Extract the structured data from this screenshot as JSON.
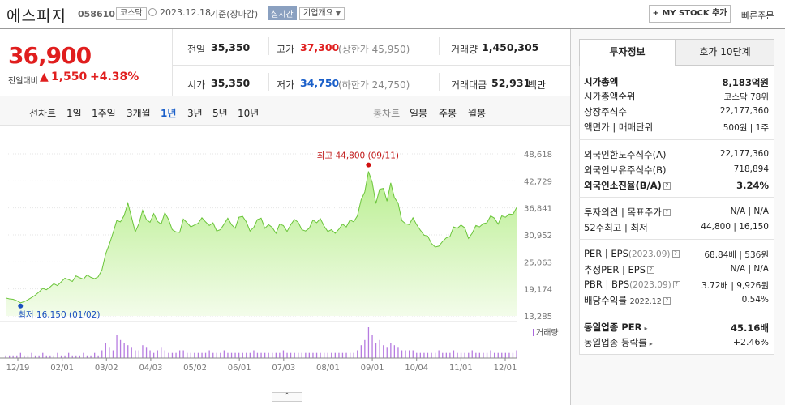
{
  "header": {
    "name": "에스피지",
    "code": "058610",
    "market": "코스닥",
    "date": "2023.12.18",
    "basis": "기준(장마감)",
    "realtime": "실시간",
    "company_info": "기업개요",
    "mystock": "+ MY STOCK 추가",
    "quick_order": "빠른주문"
  },
  "price": {
    "current": "36,900",
    "change_label": "전일대비",
    "change": "1,550",
    "rate": "+4.38%"
  },
  "summary": {
    "prev_label": "전일",
    "prev": "35,350",
    "high_label": "고가",
    "high": "37,300",
    "upper_limit": "(상한가 45,950)",
    "volume_label": "거래량",
    "volume": "1,450,305",
    "open_label": "시가",
    "open": "35,350",
    "low_label": "저가",
    "low": "34,750",
    "lower_limit": "(하한가 24,750)",
    "amount_label": "거래대금",
    "amount": "52,931",
    "amount_unit": "백만"
  },
  "period_tabs": {
    "line_chart": "선차트",
    "items": [
      "1일",
      "1주일",
      "3개월",
      "1년",
      "3년",
      "5년",
      "10년"
    ],
    "selected": "1년",
    "candle_chart": "봉차트",
    "candle_items": [
      "일봉",
      "주봉",
      "월봉"
    ]
  },
  "chart_labels": {
    "high": "최고 44,800 (09/11)",
    "low": "최저 16,150 (01/02)",
    "volume": "거래량"
  },
  "chart_data": {
    "type": "area",
    "x_ticks": [
      "12/19",
      "02/01",
      "03/02",
      "04/03",
      "05/02",
      "06/01",
      "07/03",
      "08/01",
      "09/01",
      "10/04",
      "11/01",
      "12/01"
    ],
    "y_ticks": [
      "48,618",
      "42,729",
      "36,841",
      "30,952",
      "25,063",
      "19,174",
      "13,285"
    ],
    "ylim": [
      13285,
      48618
    ],
    "series": [
      {
        "values": [
          17200,
          17000,
          16900,
          16600,
          16150,
          16400,
          16800,
          17300,
          17800,
          18500,
          19300,
          19000,
          19600,
          20300,
          19900,
          20700,
          21500,
          21200,
          20800,
          22000,
          21600,
          21300,
          22200,
          21700,
          21400,
          21800,
          23300,
          26800,
          28900,
          31400,
          34100,
          33800,
          35200,
          37900,
          34800,
          31600,
          33400,
          36300,
          34300,
          33700,
          35600,
          33900,
          33300,
          35800,
          34300,
          32100,
          31600,
          31500,
          34400,
          33600,
          32700,
          33100,
          33500,
          34700,
          33800,
          33000,
          33600,
          31800,
          32100,
          33300,
          34600,
          33200,
          32400,
          34800,
          35000,
          33800,
          31800,
          32600,
          34300,
          34600,
          32400,
          33200,
          32600,
          31300,
          33300,
          33000,
          31700,
          33200,
          34300,
          33700,
          32100,
          31800,
          32400,
          34200,
          33600,
          34500,
          32900,
          31700,
          32100,
          31300,
          32200,
          33300,
          32700,
          34200,
          33800,
          35100,
          38600,
          40300,
          44800,
          42400,
          37800,
          40900,
          41100,
          38300,
          42300,
          39100,
          37900,
          34100,
          33400,
          33200,
          34700,
          33200,
          32000,
          30900,
          30700,
          29100,
          28300,
          28500,
          29500,
          30300,
          30600,
          32700,
          32400,
          33100,
          32500,
          30200,
          31300,
          33000,
          32700,
          33400,
          33600,
          35100,
          34600,
          33300,
          35100,
          34800,
          35500,
          35400,
          36900
        ]
      },
      {
        "name": "거래량",
        "values": [
          1,
          1,
          1,
          1,
          2,
          1,
          1,
          2,
          1,
          1,
          2,
          1,
          1,
          1,
          2,
          1,
          1,
          2,
          1,
          1,
          1,
          2,
          1,
          1,
          2,
          1,
          3,
          6,
          4,
          3,
          9,
          7,
          6,
          5,
          4,
          3,
          3,
          5,
          4,
          3,
          2,
          3,
          4,
          3,
          2,
          2,
          2,
          3,
          3,
          2,
          2,
          2,
          2,
          2,
          2,
          3,
          2,
          2,
          2,
          3,
          2,
          2,
          2,
          2,
          2,
          2,
          2,
          3,
          2,
          2,
          2,
          2,
          2,
          2,
          2,
          3,
          2,
          2,
          2,
          2,
          2,
          2,
          2,
          2,
          2,
          2,
          2,
          2,
          2,
          2,
          2,
          2,
          2,
          2,
          2,
          3,
          5,
          7,
          12,
          9,
          6,
          7,
          5,
          4,
          6,
          5,
          4,
          3,
          3,
          3,
          3,
          2,
          2,
          2,
          2,
          2,
          2,
          3,
          2,
          2,
          2,
          3,
          2,
          2,
          2,
          2,
          3,
          2,
          2,
          2,
          2,
          3,
          2,
          2,
          2,
          2,
          2,
          2,
          3
        ]
      }
    ]
  },
  "right_panel": {
    "tabs": [
      "투자정보",
      "호가 10단계"
    ],
    "sec1": [
      {
        "label": "시가총액",
        "value": "8,183억원"
      },
      {
        "label": "시가총액순위",
        "value": "코스닥 78위"
      },
      {
        "label": "상장주식수",
        "value": "22,177,360"
      },
      {
        "label": "액면가 | 매매단위",
        "value": "500원 | 1주"
      }
    ],
    "sec2": [
      {
        "label": "외국인한도주식수(A)",
        "value": "22,177,360"
      },
      {
        "label": "외국인보유주식수(B)",
        "value": "718,894"
      },
      {
        "label": "외국인소진율(B/A)",
        "value": "3.24%"
      }
    ],
    "sec3": [
      {
        "label": "투자의견 | 목표주가",
        "value": "N/A | N/A"
      },
      {
        "label": "52주최고 | 최저",
        "value": "44,800 | 16,150"
      }
    ],
    "sec4": [
      {
        "label": "PER | EPS",
        "sub": "(2023.09)",
        "value": "68.84배 | 536원"
      },
      {
        "label": "추정PER | EPS",
        "sub": "",
        "value": "N/A | N/A"
      },
      {
        "label": "PBR | BPS",
        "sub": "(2023.09)",
        "value": "3.72배 | 9,926원"
      },
      {
        "label": "배당수익률",
        "sub": "2022.12",
        "value": "0.54%"
      }
    ],
    "sec5": [
      {
        "label": "동일업종 PER",
        "value": "45.16배"
      },
      {
        "label": "동일업종 등락률",
        "value": "+2.46%"
      }
    ]
  }
}
